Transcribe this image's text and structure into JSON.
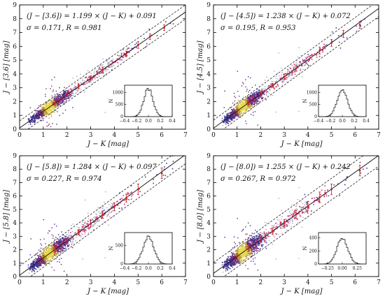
{
  "chart_data": [
    {
      "type": "scatter",
      "xlabel": "J − K [mag]",
      "ylabel": "J − [3.6] [mag]",
      "xlim": [
        0,
        7
      ],
      "ylim": [
        0,
        9
      ],
      "xticks": [
        "0",
        "1",
        "2",
        "3",
        "4",
        "5",
        "6",
        "7"
      ],
      "yticks": [
        "0",
        "1",
        "2",
        "3",
        "4",
        "5",
        "6",
        "7",
        "8",
        "9"
      ],
      "equation": "(J − [3.6]) = 1.199 × (J − K) + 0.091",
      "stats": "σ = 0.171, R = 0.981",
      "fit": {
        "slope": 1.199,
        "intercept": 0.091,
        "sigma": 0.171,
        "R": 0.981
      },
      "binned_points": [
        {
          "x": 1.0,
          "y": 1.3,
          "err": 0.15
        },
        {
          "x": 1.5,
          "y": 1.9,
          "err": 0.15
        },
        {
          "x": 2.0,
          "y": 2.52,
          "err": 0.15
        },
        {
          "x": 2.5,
          "y": 3.12,
          "err": 0.15
        },
        {
          "x": 3.0,
          "y": 3.7,
          "err": 0.15
        },
        {
          "x": 3.5,
          "y": 4.3,
          "err": 0.2
        },
        {
          "x": 4.5,
          "y": 5.45,
          "err": 0.2
        },
        {
          "x": 5.0,
          "y": 6.1,
          "err": 0.25
        },
        {
          "x": 5.5,
          "y": 6.7,
          "err": 0.2
        },
        {
          "x": 6.1,
          "y": 7.35,
          "err": 0.2
        }
      ],
      "inset": {
        "ylabel": "N",
        "xlim": [
          -0.4,
          0.4
        ],
        "ylim": [
          0,
          1300
        ],
        "xticks": [
          "−0.4",
          "−0.2",
          "0.0",
          "0.2",
          "0.4"
        ],
        "yticks": [
          "0",
          "500",
          "1000"
        ],
        "peak": 1150,
        "center": 0.0,
        "width": 0.17
      }
    },
    {
      "type": "scatter",
      "xlabel": "J − K [mag]",
      "ylabel": "J − [4.5] [mag]",
      "xlim": [
        0,
        7
      ],
      "ylim": [
        0,
        9
      ],
      "xticks": [
        "0",
        "1",
        "2",
        "3",
        "4",
        "5",
        "6",
        "7"
      ],
      "yticks": [
        "0",
        "1",
        "2",
        "3",
        "4",
        "5",
        "6",
        "7",
        "8",
        "9"
      ],
      "equation": "(J − [4.5]) = 1.238 × (J − K) + 0.072",
      "stats": "σ = 0.195, R = 0.953",
      "fit": {
        "slope": 1.238,
        "intercept": 0.072,
        "sigma": 0.195,
        "R": 0.953
      },
      "binned_points": [
        {
          "x": 1.0,
          "y": 1.31,
          "err": 0.15
        },
        {
          "x": 1.5,
          "y": 1.93,
          "err": 0.15
        },
        {
          "x": 2.0,
          "y": 2.55,
          "err": 0.15
        },
        {
          "x": 2.5,
          "y": 3.17,
          "err": 0.15
        },
        {
          "x": 3.0,
          "y": 3.8,
          "err": 0.2
        },
        {
          "x": 3.5,
          "y": 4.4,
          "err": 0.2
        },
        {
          "x": 4.5,
          "y": 5.7,
          "err": 0.25
        },
        {
          "x": 5.0,
          "y": 6.25,
          "err": 0.25
        },
        {
          "x": 5.5,
          "y": 6.9,
          "err": 0.25
        },
        {
          "x": 6.2,
          "y": 7.55,
          "err": 0.25
        }
      ],
      "inset": {
        "ylabel": "N",
        "xlim": [
          -0.4,
          0.4
        ],
        "ylim": [
          0,
          1300
        ],
        "xticks": [
          "−0.4",
          "−0.2",
          "0.0",
          "0.2",
          "0.4"
        ],
        "yticks": [
          "0",
          "500",
          "1000"
        ],
        "peak": 1120,
        "center": 0.0,
        "width": 0.19
      }
    },
    {
      "type": "scatter",
      "xlabel": "J − K [mag]",
      "ylabel": "J − [5.8] [mag]",
      "xlim": [
        0,
        7
      ],
      "ylim": [
        0,
        9
      ],
      "xticks": [
        "0",
        "1",
        "2",
        "3",
        "4",
        "5",
        "6",
        "7"
      ],
      "yticks": [
        "0",
        "1",
        "2",
        "3",
        "4",
        "5",
        "6",
        "7",
        "8",
        "9"
      ],
      "equation": "(J − [5.8]) = 1.284 × (J − K) + 0.097",
      "stats": "σ = 0.227, R = 0.974",
      "fit": {
        "slope": 1.284,
        "intercept": 0.097,
        "sigma": 0.227,
        "R": 0.974
      },
      "binned_points": [
        {
          "x": 1.0,
          "y": 1.38,
          "err": 0.2
        },
        {
          "x": 1.5,
          "y": 2.02,
          "err": 0.2
        },
        {
          "x": 2.0,
          "y": 2.66,
          "err": 0.2
        },
        {
          "x": 2.5,
          "y": 3.3,
          "err": 0.2
        },
        {
          "x": 3.0,
          "y": 3.95,
          "err": 0.25
        },
        {
          "x": 3.5,
          "y": 4.6,
          "err": 0.25
        },
        {
          "x": 4.0,
          "y": 5.2,
          "err": 0.3
        },
        {
          "x": 4.5,
          "y": 5.85,
          "err": 0.3
        },
        {
          "x": 5.0,
          "y": 6.5,
          "err": 0.4
        },
        {
          "x": 6.0,
          "y": 7.7,
          "err": 0.4
        }
      ],
      "inset": {
        "ylabel": "N",
        "xlim": [
          -0.4,
          0.4
        ],
        "ylim": [
          0,
          850
        ],
        "xticks": [
          "−0.4",
          "−0.2",
          "0.0",
          "0.2",
          "0.4"
        ],
        "yticks": [
          "0",
          "500"
        ],
        "peak": 720,
        "center": 0.0,
        "width": 0.2
      }
    },
    {
      "type": "scatter",
      "xlabel": "J − K [mag]",
      "ylabel": "J − [8.0] [mag]",
      "xlim": [
        0,
        7
      ],
      "ylim": [
        0,
        9
      ],
      "xticks": [
        "0",
        "1",
        "2",
        "3",
        "4",
        "5",
        "6",
        "7"
      ],
      "yticks": [
        "0",
        "1",
        "2",
        "3",
        "4",
        "5",
        "6",
        "7",
        "8",
        "9"
      ],
      "equation": "(J − [8.0]) = 1.255 × (J − K) + 0.242",
      "stats": "σ = 0.267, R = 0.972",
      "fit": {
        "slope": 1.255,
        "intercept": 0.242,
        "sigma": 0.267,
        "R": 0.972
      },
      "binned_points": [
        {
          "x": 1.0,
          "y": 1.5,
          "err": 0.2
        },
        {
          "x": 1.5,
          "y": 2.12,
          "err": 0.2
        },
        {
          "x": 2.0,
          "y": 2.75,
          "err": 0.2
        },
        {
          "x": 2.5,
          "y": 3.38,
          "err": 0.25
        },
        {
          "x": 3.0,
          "y": 4.0,
          "err": 0.25
        },
        {
          "x": 3.5,
          "y": 4.63,
          "err": 0.3
        },
        {
          "x": 4.0,
          "y": 5.25,
          "err": 0.35
        },
        {
          "x": 4.5,
          "y": 5.9,
          "err": 0.4
        },
        {
          "x": 5.0,
          "y": 6.5,
          "err": 0.4
        },
        {
          "x": 6.2,
          "y": 7.9,
          "err": 0.4
        }
      ],
      "inset": {
        "ylabel": "N",
        "xlim": [
          -0.4,
          0.4
        ],
        "ylim": [
          0,
          480
        ],
        "xticks": [
          "−0.25",
          "0.00",
          "0.25"
        ],
        "xtick_values": [
          -0.25,
          0.0,
          0.25
        ],
        "yticks": [
          "0",
          "200",
          "400"
        ],
        "peak": 400,
        "center": 0.0,
        "width": 0.2
      }
    }
  ]
}
